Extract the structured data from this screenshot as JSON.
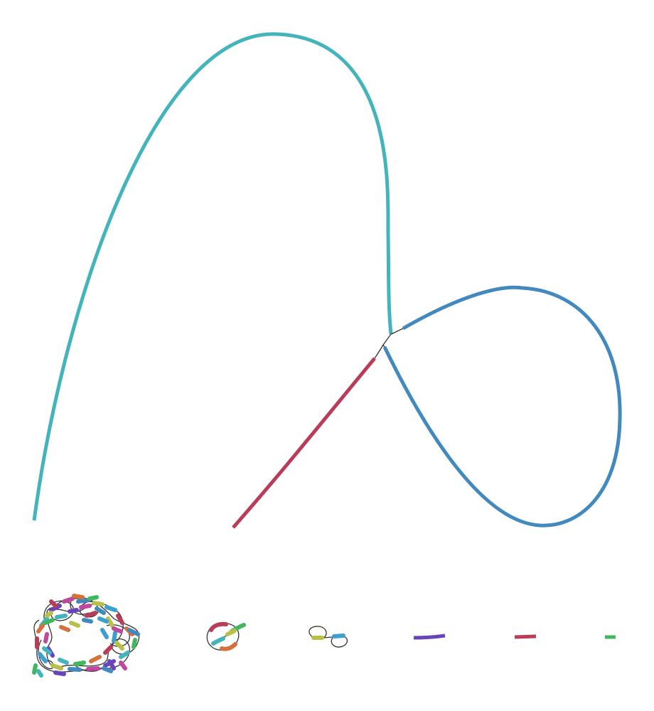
{
  "colors": {
    "background": "#ffffff",
    "link": "#333333",
    "teal": "#44b4bc",
    "blue": "#4189be",
    "crimson": "#b93d58",
    "purple": "#6a44ba",
    "green": "#3fb85e",
    "orange": "#d4713c",
    "olive": "#b9c047",
    "magenta": "#c0469e",
    "sky": "#3d9fd0"
  },
  "components": [
    {
      "id": "component-large-three-segment",
      "segments": 3
    },
    {
      "id": "component-dense-tangle",
      "segments": 60
    },
    {
      "id": "component-small-ring",
      "segments": 6
    },
    {
      "id": "component-double-loop",
      "segments": 2
    },
    {
      "id": "component-single-purple",
      "segments": 1
    },
    {
      "id": "component-single-crimson",
      "segments": 1
    },
    {
      "id": "component-single-green",
      "segments": 1
    }
  ]
}
